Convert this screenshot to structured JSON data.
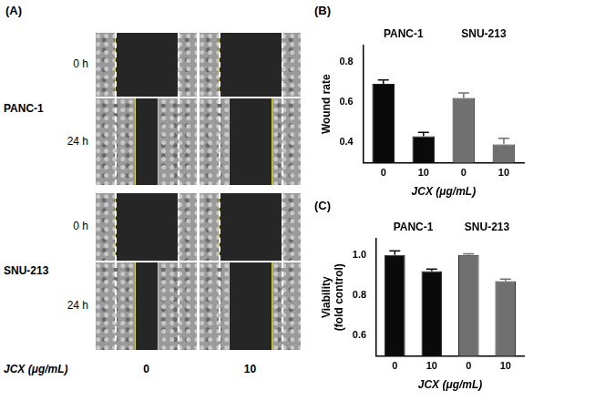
{
  "panel_a": {
    "letter": "(A)",
    "cell_lines": [
      "PANC-1",
      "SNU-213"
    ],
    "times": [
      "0 h",
      "24 h"
    ],
    "x_label": "JCX (μg/mL)",
    "doses": [
      "0",
      "10"
    ]
  },
  "chart_data": [
    {
      "panel": "(B)",
      "type": "bar",
      "categories": [
        "0",
        "10",
        "0",
        "10"
      ],
      "group_labels": [
        "PANC-1",
        "SNU-213"
      ],
      "values": [
        0.69,
        0.43,
        0.62,
        0.39
      ],
      "errors": [
        0.02,
        0.02,
        0.025,
        0.03
      ],
      "colors": [
        "#0a0a0a",
        "#0a0a0a",
        "#707070",
        "#707070"
      ],
      "x_label": "JCX (μg/mL)",
      "y_label": "Wound rate",
      "ylim": [
        0.3,
        0.88
      ],
      "yticks": [
        0.4,
        0.6,
        0.8
      ],
      "grid": false,
      "data_labels": false
    },
    {
      "panel": "(C)",
      "type": "bar",
      "categories": [
        "0",
        "10",
        "0",
        "10"
      ],
      "group_labels": [
        "PANC-1",
        "SNU-213"
      ],
      "values": [
        1.0,
        0.92,
        1.0,
        0.87
      ],
      "errors": [
        0.02,
        0.01,
        0.005,
        0.01
      ],
      "colors": [
        "#0a0a0a",
        "#0a0a0a",
        "#707070",
        "#707070"
      ],
      "x_label": "JCX (μg/mL)",
      "y_label": [
        "Viability",
        "(fold control)"
      ],
      "ylim": [
        0.5,
        1.08
      ],
      "yticks": [
        0.6,
        0.8,
        {
          "value": 1,
          "label": "1.0"
        }
      ],
      "grid": false,
      "data_labels": false
    }
  ]
}
